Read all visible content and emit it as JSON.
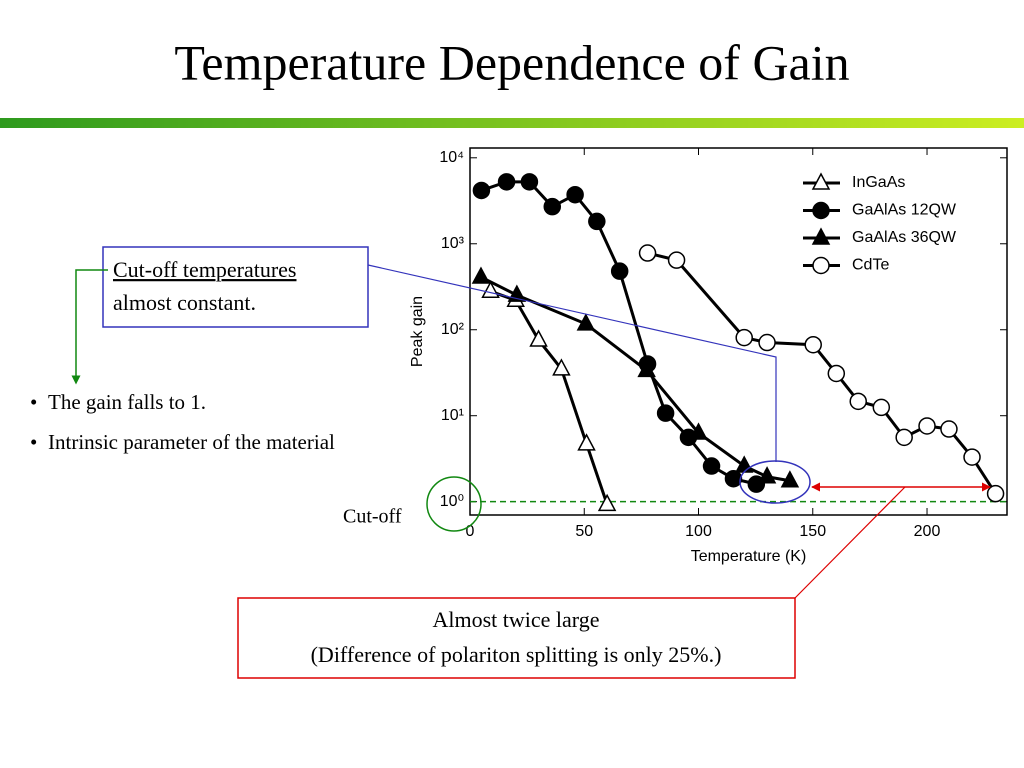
{
  "slide": {
    "title": "Temperature Dependence of Gain",
    "callout_top": [
      "Cut-off temperatures",
      "almost constant."
    ],
    "bullets": [
      "The gain falls to 1.",
      "Intrinsic parameter of the material"
    ],
    "cutoff_label": "Cut-off",
    "callout_bottom": [
      "Almost twice large",
      "(Difference of polariton splitting is only 25%.)"
    ]
  },
  "chart_data": {
    "type": "line",
    "x_label": "Temperature (K)",
    "y_label": "Peak gain",
    "xlim": [
      0,
      235
    ],
    "xticks": [
      0,
      50,
      100,
      150,
      200
    ],
    "ylim": [
      0.7,
      13000
    ],
    "log_y": true,
    "yticks": [
      {
        "value": 1,
        "label": "10⁰"
      },
      {
        "value": 10,
        "label": "10¹"
      },
      {
        "value": 100,
        "label": "10²"
      },
      {
        "value": 1000,
        "label": "10³"
      },
      {
        "value": 10000,
        "label": "10⁴"
      }
    ],
    "hline": 1,
    "legend": "upper right",
    "series": [
      {
        "name": "InGaAs",
        "color": "#000000",
        "marker": "triangle-open",
        "x": [
          9,
          20,
          30,
          40,
          51,
          60
        ],
        "values": [
          280,
          220,
          76,
          35,
          4.7,
          0.93
        ]
      },
      {
        "name": "GaAlAs 12QW",
        "color": "#000000",
        "marker": "circle-filled",
        "x": [
          5,
          16,
          26,
          36,
          46,
          55.5,
          65.5,
          77.7,
          85.6,
          95.6,
          105.7,
          115.3,
          125.3
        ],
        "values": [
          4170,
          5250,
          5250,
          2700,
          3720,
          1820,
          480,
          40,
          10.7,
          5.6,
          2.6,
          1.85,
          1.6
        ]
      },
      {
        "name": "GaAlAs 36QW",
        "color": "#000000",
        "marker": "triangle-filled",
        "x": [
          4.8,
          20.5,
          50.7,
          77.3,
          100,
          120,
          130,
          140
        ],
        "values": [
          410,
          253,
          117,
          33.7,
          6.3,
          2.6,
          1.95,
          1.75
        ]
      },
      {
        "name": "CdTe",
        "color": "#000000",
        "marker": "circle-open",
        "x": [
          77.7,
          90.4,
          120,
          130,
          150.2,
          160.3,
          169.9,
          180,
          190,
          200,
          209.6,
          219.7,
          230
        ],
        "values": [
          780,
          645,
          81,
          71,
          67,
          31,
          14.7,
          12.5,
          5.6,
          7.6,
          7,
          3.3,
          1.24
        ]
      }
    ]
  }
}
